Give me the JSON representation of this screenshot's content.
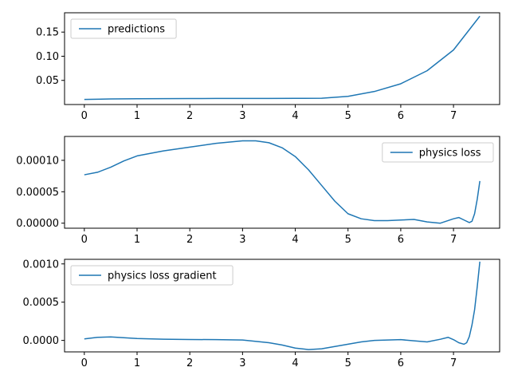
{
  "figure": {
    "background": "#ffffff",
    "line_color": "#1f77b4"
  },
  "chart_data": [
    {
      "type": "line",
      "title": "",
      "xlabel": "",
      "ylabel": "",
      "xlim": [
        -0.375,
        7.875
      ],
      "ylim": [
        0.0,
        0.19
      ],
      "xticks": [
        0,
        1,
        2,
        3,
        4,
        5,
        6,
        7
      ],
      "xtick_labels": [
        "0",
        "1",
        "2",
        "3",
        "4",
        "5",
        "6",
        "7"
      ],
      "yticks": [
        0.05,
        0.1,
        0.15
      ],
      "ytick_labels": [
        "0.05",
        "0.10",
        "0.15"
      ],
      "grid": false,
      "legend_position": "upper-left",
      "series": [
        {
          "name": "predictions",
          "color": "#1f77b4",
          "x": [
            0,
            0.5,
            1,
            1.5,
            2,
            2.5,
            3,
            3.5,
            4,
            4.5,
            5,
            5.5,
            6,
            6.5,
            7,
            7.5
          ],
          "y": [
            0.0105,
            0.0115,
            0.012,
            0.0122,
            0.0124,
            0.0125,
            0.0126,
            0.0126,
            0.0127,
            0.013,
            0.017,
            0.027,
            0.043,
            0.07,
            0.113,
            0.183
          ]
        }
      ]
    },
    {
      "type": "line",
      "title": "",
      "xlabel": "",
      "ylabel": "",
      "xlim": [
        -0.375,
        7.875
      ],
      "ylim": [
        -8e-06,
        0.000138
      ],
      "xticks": [
        0,
        1,
        2,
        3,
        4,
        5,
        6,
        7
      ],
      "xtick_labels": [
        "0",
        "1",
        "2",
        "3",
        "4",
        "5",
        "6",
        "7"
      ],
      "yticks": [
        0.0,
        5e-05,
        0.0001
      ],
      "ytick_labels": [
        "0.00000",
        "0.00005",
        "0.00010"
      ],
      "grid": false,
      "legend_position": "upper-right",
      "series": [
        {
          "name": "physics loss",
          "color": "#1f77b4",
          "x": [
            0,
            0.25,
            0.5,
            0.75,
            1,
            1.5,
            2,
            2.5,
            3,
            3.25,
            3.5,
            3.75,
            4,
            4.25,
            4.5,
            4.75,
            5,
            5.25,
            5.5,
            5.75,
            6,
            6.25,
            6.5,
            6.75,
            7,
            7.1,
            7.2,
            7.3,
            7.35,
            7.4,
            7.45,
            7.5
          ],
          "y": [
            7.7e-05,
            8.1e-05,
            8.9e-05,
            9.9e-05,
            0.000107,
            0.000115,
            0.000121,
            0.000127,
            0.000131,
            0.000131,
            0.000128,
            0.00012,
            0.000106,
            8.5e-05,
            6e-05,
            3.5e-05,
            1.5e-05,
            7e-06,
            4e-06,
            4e-06,
            5e-06,
            6e-06,
            2e-06,
            0.0,
            7e-06,
            9e-06,
            5e-06,
            1e-06,
            3e-06,
            1.5e-05,
            3.8e-05,
            6.7e-05
          ]
        }
      ]
    },
    {
      "type": "line",
      "title": "",
      "xlabel": "",
      "ylabel": "",
      "xlim": [
        -0.375,
        7.875
      ],
      "ylim": [
        -0.00015,
        0.00106
      ],
      "xticks": [
        0,
        1,
        2,
        3,
        4,
        5,
        6,
        7
      ],
      "xtick_labels": [
        "0",
        "1",
        "2",
        "3",
        "4",
        "5",
        "6",
        "7"
      ],
      "yticks": [
        0.0,
        0.0005,
        0.001
      ],
      "ytick_labels": [
        "0.0000",
        "0.0005",
        "0.0010"
      ],
      "grid": false,
      "legend_position": "upper-left",
      "series": [
        {
          "name": "physics loss gradient",
          "color": "#1f77b4",
          "x": [
            0,
            0.25,
            0.5,
            0.75,
            1,
            1.5,
            2,
            2.5,
            3,
            3.5,
            3.75,
            4,
            4.25,
            4.5,
            4.75,
            5,
            5.25,
            5.5,
            6,
            6.25,
            6.5,
            6.75,
            6.9,
            7.0,
            7.1,
            7.2,
            7.25,
            7.3,
            7.35,
            7.4,
            7.45,
            7.5
          ],
          "y": [
            2e-05,
            4e-05,
            4.5e-05,
            3.5e-05,
            2.5e-05,
            1.5e-05,
            1.2e-05,
            1e-05,
            5e-06,
            -3e-05,
            -6e-05,
            -0.0001,
            -0.00012,
            -0.00011,
            -8e-05,
            -5e-05,
            -2e-05,
            0.0,
            1e-05,
            -5e-06,
            -2e-05,
            1.5e-05,
            4e-05,
            1e-05,
            -3e-05,
            -5e-05,
            -3e-05,
            5e-05,
            0.0002,
            0.0004,
            0.0007,
            0.00103
          ]
        }
      ]
    }
  ]
}
